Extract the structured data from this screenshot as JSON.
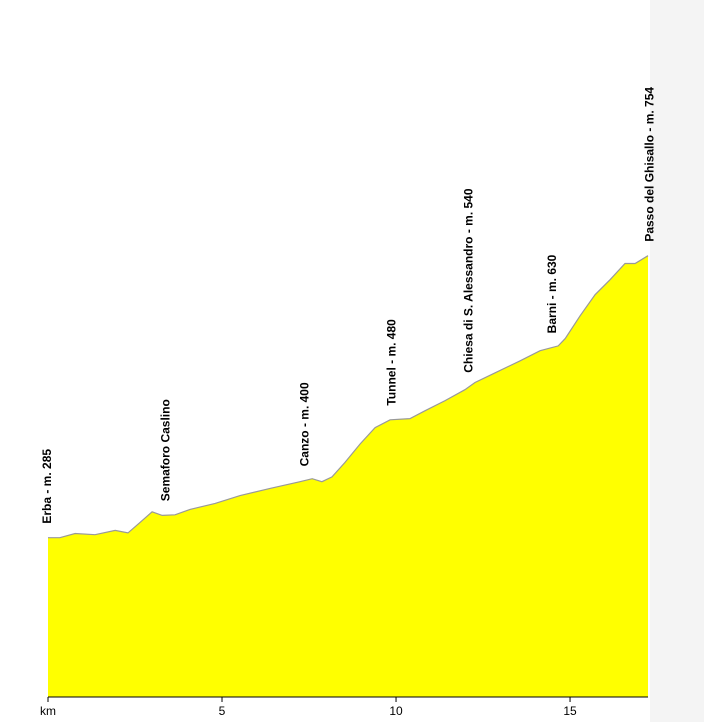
{
  "chart_data": {
    "type": "area",
    "x": [
      0,
      0.34,
      0.78,
      1.35,
      1.93,
      2.3,
      2.64,
      2.99,
      3.28,
      3.65,
      4.08,
      4.8,
      5.52,
      6.38,
      7.24,
      7.59,
      7.87,
      8.16,
      8.53,
      8.97,
      9.4,
      9.83,
      10.4,
      10.83,
      11.41,
      11.98,
      12.27,
      12.84,
      13.56,
      14.14,
      14.66,
      14.86,
      15.29,
      15.72,
      16.15,
      16.58,
      16.87,
      17.24
    ],
    "values": [
      285,
      285,
      292,
      290,
      297,
      293,
      310,
      328,
      322,
      323,
      332,
      342,
      355,
      367,
      378,
      383,
      378,
      386,
      410,
      441,
      468,
      481,
      483,
      496,
      513,
      531,
      543,
      559,
      579,
      596,
      604,
      616,
      654,
      689,
      714,
      741,
      741,
      754
    ],
    "color": "#ffff00",
    "xlim": [
      0,
      17.24
    ],
    "ylim": [
      20,
      800
    ],
    "xticks": [
      {
        "value": 0,
        "label": "km"
      },
      5,
      10,
      15
    ],
    "annotations": [
      {
        "text": "Erba - m. 285",
        "x": 0
      },
      {
        "text": "Semaforo Caslino",
        "x": 3.4
      },
      {
        "text": "Canzo - m. 400",
        "x": 7.4
      },
      {
        "text": "Tunnel - m. 480",
        "x": 9.9
      },
      {
        "text": "Chiesa di S. Alessandro - m. 540",
        "x": 12.1
      },
      {
        "text": "Barni - m. 630",
        "x": 14.5
      },
      {
        "text": "Passo del Ghisallo - m. 754",
        "x": 17.3
      }
    ]
  }
}
